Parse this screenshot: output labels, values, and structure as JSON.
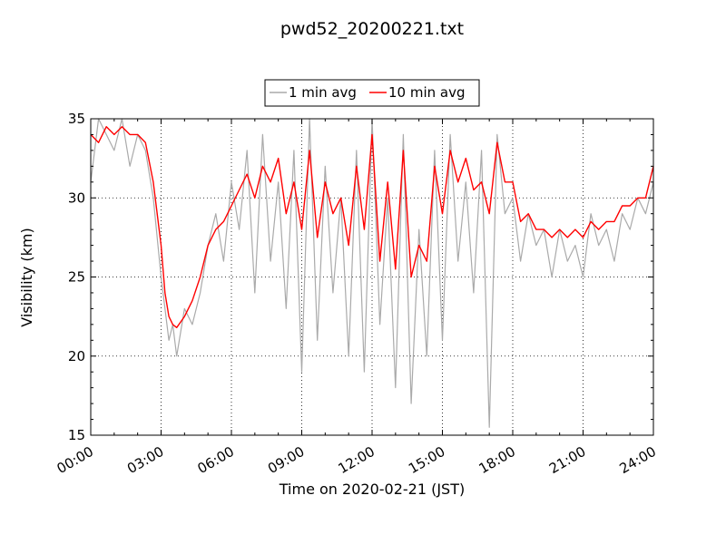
{
  "chart_data": {
    "type": "line",
    "title": "pwd52_20200221.txt",
    "xlabel": "Time on 2020-02-21 (JST)",
    "ylabel": "Visibility (km)",
    "xlim": [
      "00:00",
      "24:00"
    ],
    "ylim": [
      15,
      35
    ],
    "xticks": [
      "00:00",
      "03:00",
      "06:00",
      "09:00",
      "12:00",
      "15:00",
      "18:00",
      "21:00",
      "24:00"
    ],
    "yticks": [
      "15",
      "20",
      "25",
      "30",
      "35"
    ],
    "grid": true,
    "legend_position": "top-center",
    "series": [
      {
        "name": "1 min avg",
        "color": "#aaaaaa",
        "x": [
          "00:00",
          "00:20",
          "00:40",
          "01:00",
          "01:20",
          "01:40",
          "02:00",
          "02:20",
          "02:40",
          "03:00",
          "03:10",
          "03:20",
          "03:30",
          "03:40",
          "04:00",
          "04:20",
          "04:40",
          "05:00",
          "05:20",
          "05:40",
          "06:00",
          "06:20",
          "06:40",
          "07:00",
          "07:20",
          "07:40",
          "08:00",
          "08:20",
          "08:40",
          "09:00",
          "09:20",
          "09:40",
          "10:00",
          "10:20",
          "10:40",
          "11:00",
          "11:20",
          "11:40",
          "12:00",
          "12:20",
          "12:40",
          "13:00",
          "13:20",
          "13:40",
          "14:00",
          "14:20",
          "14:40",
          "15:00",
          "15:20",
          "15:40",
          "16:00",
          "16:20",
          "16:40",
          "17:00",
          "17:20",
          "17:40",
          "18:00",
          "18:20",
          "18:40",
          "19:00",
          "19:20",
          "19:40",
          "20:00",
          "20:20",
          "20:40",
          "21:00",
          "21:20",
          "21:40",
          "22:00",
          "22:20",
          "22:40",
          "23:00",
          "23:20",
          "23:40",
          "24:00"
        ],
        "y": [
          31,
          35,
          34,
          33,
          35,
          32,
          34,
          33,
          30,
          25,
          23,
          21,
          22,
          20,
          23,
          22,
          24,
          27,
          29,
          26,
          31,
          28,
          33,
          24,
          34,
          26,
          31,
          23,
          33,
          19,
          35,
          21,
          32,
          24,
          30,
          20,
          33,
          19,
          35,
          22,
          30,
          18,
          34,
          17,
          28,
          20,
          33,
          21,
          34,
          26,
          31,
          24,
          33,
          15.5,
          34,
          29,
          30,
          26,
          29,
          27,
          28,
          25,
          28,
          26,
          27,
          25,
          29,
          27,
          28,
          26,
          29,
          28,
          30,
          29,
          31
        ]
      },
      {
        "name": "10 min avg",
        "color": "#ff0000",
        "x": [
          "00:00",
          "00:20",
          "00:40",
          "01:00",
          "01:20",
          "01:40",
          "02:00",
          "02:20",
          "02:40",
          "03:00",
          "03:10",
          "03:20",
          "03:30",
          "03:40",
          "04:00",
          "04:20",
          "04:40",
          "05:00",
          "05:20",
          "05:40",
          "06:00",
          "06:20",
          "06:40",
          "07:00",
          "07:20",
          "07:40",
          "08:00",
          "08:20",
          "08:40",
          "09:00",
          "09:20",
          "09:40",
          "10:00",
          "10:20",
          "10:40",
          "11:00",
          "11:20",
          "11:40",
          "12:00",
          "12:20",
          "12:40",
          "13:00",
          "13:20",
          "13:40",
          "14:00",
          "14:20",
          "14:40",
          "15:00",
          "15:20",
          "15:40",
          "16:00",
          "16:20",
          "16:40",
          "17:00",
          "17:20",
          "17:40",
          "18:00",
          "18:20",
          "18:40",
          "19:00",
          "19:20",
          "19:40",
          "20:00",
          "20:20",
          "20:40",
          "21:00",
          "21:20",
          "21:40",
          "22:00",
          "22:20",
          "22:40",
          "23:00",
          "23:20",
          "23:40",
          "24:00"
        ],
        "y": [
          34,
          33.5,
          34.5,
          34,
          34.5,
          34,
          34,
          33.5,
          31,
          27,
          24,
          22.5,
          22,
          21.8,
          22.5,
          23.5,
          25,
          27,
          28,
          28.5,
          29.5,
          30.5,
          31.5,
          30,
          32,
          31,
          32.5,
          29,
          31,
          28,
          33,
          27.5,
          31,
          29,
          30,
          27,
          32,
          28,
          34,
          26,
          31,
          25.5,
          33,
          25,
          27,
          26,
          32,
          29,
          33,
          31,
          32.5,
          30.5,
          31,
          29,
          33.5,
          31,
          31,
          28.5,
          29,
          28,
          28,
          27.5,
          28,
          27.5,
          28,
          27.5,
          28.5,
          28,
          28.5,
          28.5,
          29.5,
          29.5,
          30,
          30,
          32
        ]
      }
    ]
  }
}
